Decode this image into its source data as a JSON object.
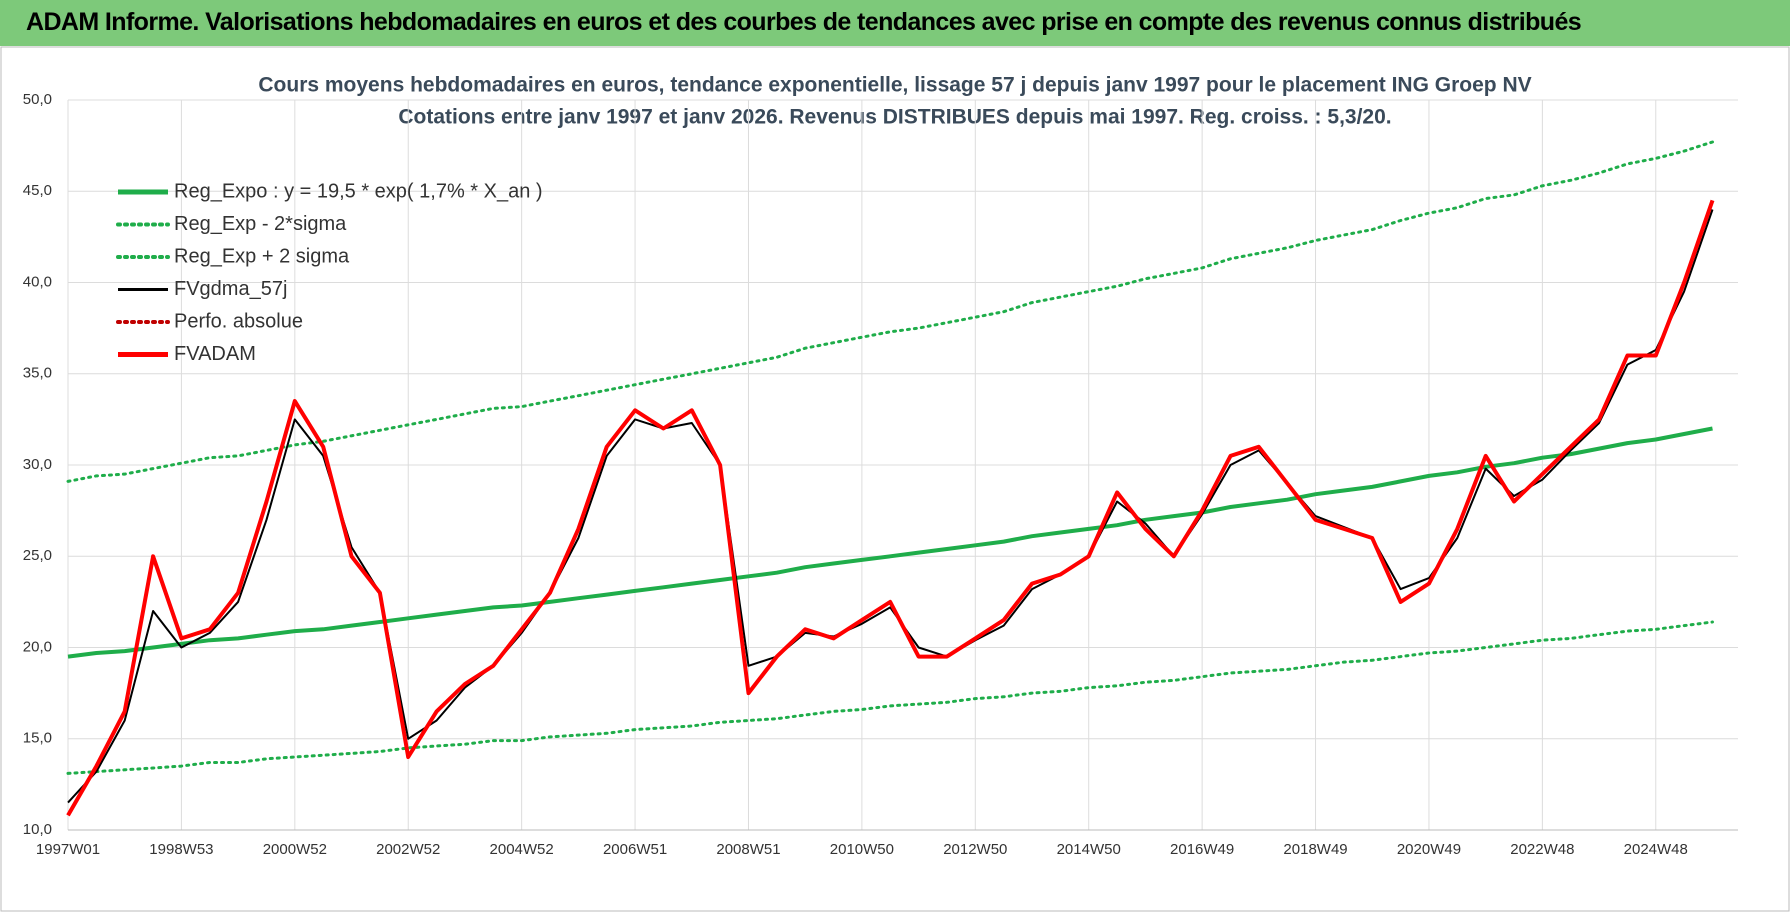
{
  "header": {
    "title": "ADAM Informe. Valorisations hebdomadaires en euros et des courbes de tendances avec prise en compte des revenus connus distribués"
  },
  "chart_data": {
    "type": "line",
    "title": "Cours moyens hebdomadaires en euros, tendance exponentielle, lissage 57 j depuis janv 1997  pour le placement ING Groep NV",
    "subtitle": "Cotations entre janv 1997 et janv 2026. Revenus DISTRIBUES depuis mai 1997. Reg. croiss. : 5,3/20.",
    "categories": [
      "1997W01",
      null,
      null,
      null,
      "1998W53",
      null,
      null,
      null,
      "2000W52",
      null,
      null,
      null,
      "2002W52",
      null,
      null,
      null,
      "2004W52",
      null,
      null,
      null,
      "2006W51",
      null,
      null,
      null,
      "2008W51",
      null,
      null,
      null,
      "2010W50",
      null,
      null,
      null,
      "2012W50",
      null,
      null,
      null,
      "2014W50",
      null,
      null,
      null,
      "2016W49",
      null,
      null,
      null,
      "2018W49",
      null,
      null,
      null,
      "2020W49",
      null,
      null,
      null,
      "2022W48",
      null,
      null,
      null,
      "2024W48",
      null,
      null
    ],
    "ylim": [
      10,
      50
    ],
    "yticks": [
      {
        "value": 10,
        "label": "10,0"
      },
      {
        "value": 15,
        "label": "15,0"
      },
      {
        "value": 20,
        "label": "20,0"
      },
      {
        "value": 25,
        "label": "25,0"
      },
      {
        "value": 30,
        "label": "30,0"
      },
      {
        "value": 35,
        "label": "35,0"
      },
      {
        "value": 40,
        "label": "40,0"
      },
      {
        "value": 45,
        "label": "45,0"
      },
      {
        "value": 50,
        "label": "50,0"
      }
    ],
    "grid": true,
    "legend": "top-left",
    "series": [
      {
        "name": "Reg_Expo : y = 19,5 * exp( 1,7% *  X_an )",
        "color": "#1fad4a",
        "style": "thick",
        "values": [
          19.5,
          19.7,
          19.8,
          20.0,
          20.2,
          20.4,
          20.5,
          20.7,
          20.9,
          21.0,
          21.2,
          21.4,
          21.6,
          21.8,
          22.0,
          22.2,
          22.3,
          22.5,
          22.7,
          22.9,
          23.1,
          23.3,
          23.5,
          23.7,
          23.9,
          24.1,
          24.4,
          24.6,
          24.8,
          25.0,
          25.2,
          25.4,
          25.6,
          25.8,
          26.1,
          26.3,
          26.5,
          26.7,
          27.0,
          27.2,
          27.4,
          27.7,
          27.9,
          28.1,
          28.4,
          28.6,
          28.8,
          29.1,
          29.4,
          29.6,
          29.9,
          30.1,
          30.4,
          30.6,
          30.9,
          31.2,
          31.4,
          31.7,
          32.0
        ]
      },
      {
        "name": "Reg_Exp - 2*sigma",
        "color": "#1fad4a",
        "style": "dotted",
        "values": [
          13.1,
          13.2,
          13.3,
          13.4,
          13.5,
          13.7,
          13.7,
          13.9,
          14.0,
          14.1,
          14.2,
          14.3,
          14.5,
          14.6,
          14.7,
          14.9,
          14.9,
          15.1,
          15.2,
          15.3,
          15.5,
          15.6,
          15.7,
          15.9,
          16.0,
          16.1,
          16.3,
          16.5,
          16.6,
          16.8,
          16.9,
          17.0,
          17.2,
          17.3,
          17.5,
          17.6,
          17.8,
          17.9,
          18.1,
          18.2,
          18.4,
          18.6,
          18.7,
          18.8,
          19.0,
          19.2,
          19.3,
          19.5,
          19.7,
          19.8,
          20.0,
          20.2,
          20.4,
          20.5,
          20.7,
          20.9,
          21.0,
          21.2,
          21.4
        ]
      },
      {
        "name": "Reg_Exp + 2 sigma",
        "color": "#1fad4a",
        "style": "dotted",
        "values": [
          29.1,
          29.4,
          29.5,
          29.8,
          30.1,
          30.4,
          30.5,
          30.8,
          31.1,
          31.3,
          31.6,
          31.9,
          32.2,
          32.5,
          32.8,
          33.1,
          33.2,
          33.5,
          33.8,
          34.1,
          34.4,
          34.7,
          35.0,
          35.3,
          35.6,
          35.9,
          36.4,
          36.7,
          37.0,
          37.3,
          37.5,
          37.8,
          38.1,
          38.4,
          38.9,
          39.2,
          39.5,
          39.8,
          40.2,
          40.5,
          40.8,
          41.3,
          41.6,
          41.9,
          42.3,
          42.6,
          42.9,
          43.4,
          43.8,
          44.1,
          44.6,
          44.8,
          45.3,
          45.6,
          46.0,
          46.5,
          46.8,
          47.2,
          47.7
        ]
      },
      {
        "name": "FVgdma_57j",
        "color": "#000000",
        "style": "solid",
        "values": [
          11.5,
          13.2,
          16.0,
          22.0,
          20.0,
          20.8,
          22.5,
          27.0,
          32.5,
          30.5,
          25.5,
          23.0,
          15.0,
          16.0,
          17.8,
          19.0,
          20.8,
          23.0,
          26.0,
          30.5,
          32.5,
          32.0,
          32.3,
          30.0,
          19.0,
          19.5,
          20.8,
          20.6,
          21.3,
          22.2,
          20.0,
          19.5,
          20.4,
          21.2,
          23.2,
          24.0,
          25.0,
          28.0,
          26.8,
          25.0,
          27.3,
          30.0,
          30.8,
          29.0,
          27.2,
          26.6,
          26.0,
          23.2,
          23.8,
          26.0,
          29.8,
          28.3,
          29.2,
          30.8,
          32.3,
          35.5,
          36.3,
          39.5,
          44.0
        ]
      },
      {
        "name": "Perfo. absolue",
        "color": "#c00000",
        "style": "dotted",
        "values": [
          null,
          null,
          null,
          null,
          null,
          null,
          null,
          null,
          null,
          null,
          null,
          null,
          null,
          null,
          null,
          null,
          null,
          null,
          null,
          null,
          null,
          null,
          null,
          null,
          null,
          null,
          null,
          null,
          null,
          null,
          null,
          null,
          null,
          null,
          null,
          null,
          null,
          null,
          null,
          null,
          null,
          null,
          null,
          null,
          null,
          null,
          null,
          null,
          null,
          null,
          null,
          null,
          null,
          null,
          null,
          null,
          null,
          null,
          null
        ]
      },
      {
        "name": "FVADAM",
        "color": "#ff0000",
        "style": "thick",
        "values": [
          10.8,
          13.5,
          16.5,
          25.0,
          20.5,
          21.0,
          23.0,
          28.0,
          33.5,
          31.0,
          25.0,
          23.0,
          14.0,
          16.5,
          18.0,
          19.0,
          21.0,
          23.0,
          26.5,
          31.0,
          33.0,
          32.0,
          33.0,
          30.0,
          17.5,
          19.5,
          21.0,
          20.5,
          21.5,
          22.5,
          19.5,
          19.5,
          20.5,
          21.5,
          23.5,
          24.0,
          25.0,
          28.5,
          26.5,
          25.0,
          27.5,
          30.5,
          31.0,
          29.0,
          27.0,
          26.5,
          26.0,
          22.5,
          23.5,
          26.5,
          30.5,
          28.0,
          29.5,
          31.0,
          32.5,
          36.0,
          36.0,
          40.0,
          44.5
        ]
      }
    ]
  }
}
